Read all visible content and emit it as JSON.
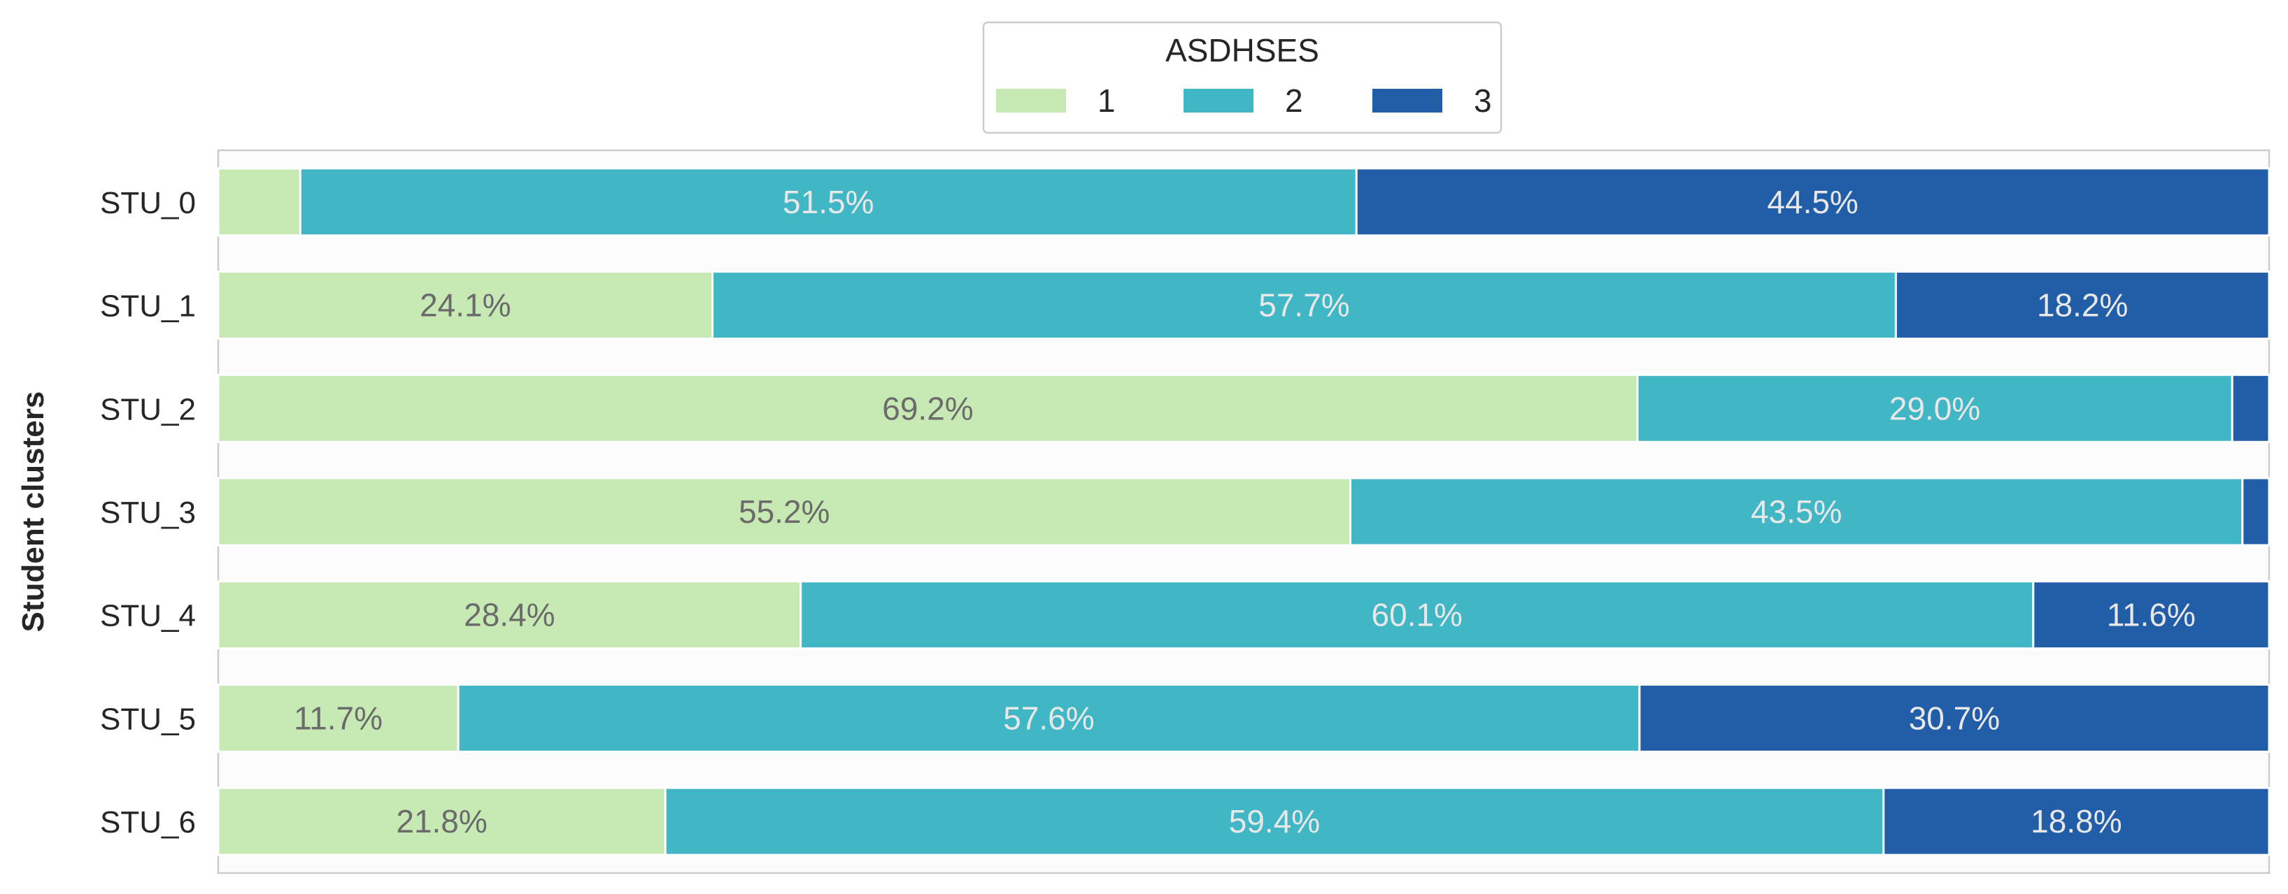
{
  "chart_data": {
    "type": "bar",
    "orientation": "horizontal",
    "stacked": true,
    "normalized": true,
    "categories": [
      "STU_0",
      "STU_1",
      "STU_2",
      "STU_3",
      "STU_4",
      "STU_5",
      "STU_6"
    ],
    "series": [
      {
        "name": "1",
        "color": "#c7e9b4",
        "values": [
          4.0,
          24.1,
          69.2,
          55.2,
          28.4,
          11.7,
          21.8
        ],
        "labels": [
          "",
          "24.1%",
          "69.2%",
          "55.2%",
          "28.4%",
          "11.7%",
          "21.8%"
        ]
      },
      {
        "name": "2",
        "color": "#41b6c4",
        "values": [
          51.5,
          57.7,
          29.0,
          43.5,
          60.1,
          57.6,
          59.4
        ],
        "labels": [
          "51.5%",
          "57.7%",
          "29.0%",
          "43.5%",
          "60.1%",
          "57.6%",
          "59.4%"
        ]
      },
      {
        "name": "3",
        "color": "#225ea8",
        "values": [
          44.5,
          18.2,
          1.8,
          1.3,
          11.6,
          30.7,
          18.8
        ],
        "labels": [
          "44.5%",
          "18.2%",
          "",
          "",
          "11.6%",
          "30.7%",
          "18.8%"
        ]
      }
    ],
    "ylabel": "Student clusters",
    "xlabel": "",
    "xlim": [
      0,
      100
    ],
    "legend": {
      "title": "ASDHSES",
      "placement": "top-center"
    },
    "grid": false,
    "label_colors": {
      "light": "#6b6b6b",
      "dark": "#e8e8e8"
    }
  }
}
